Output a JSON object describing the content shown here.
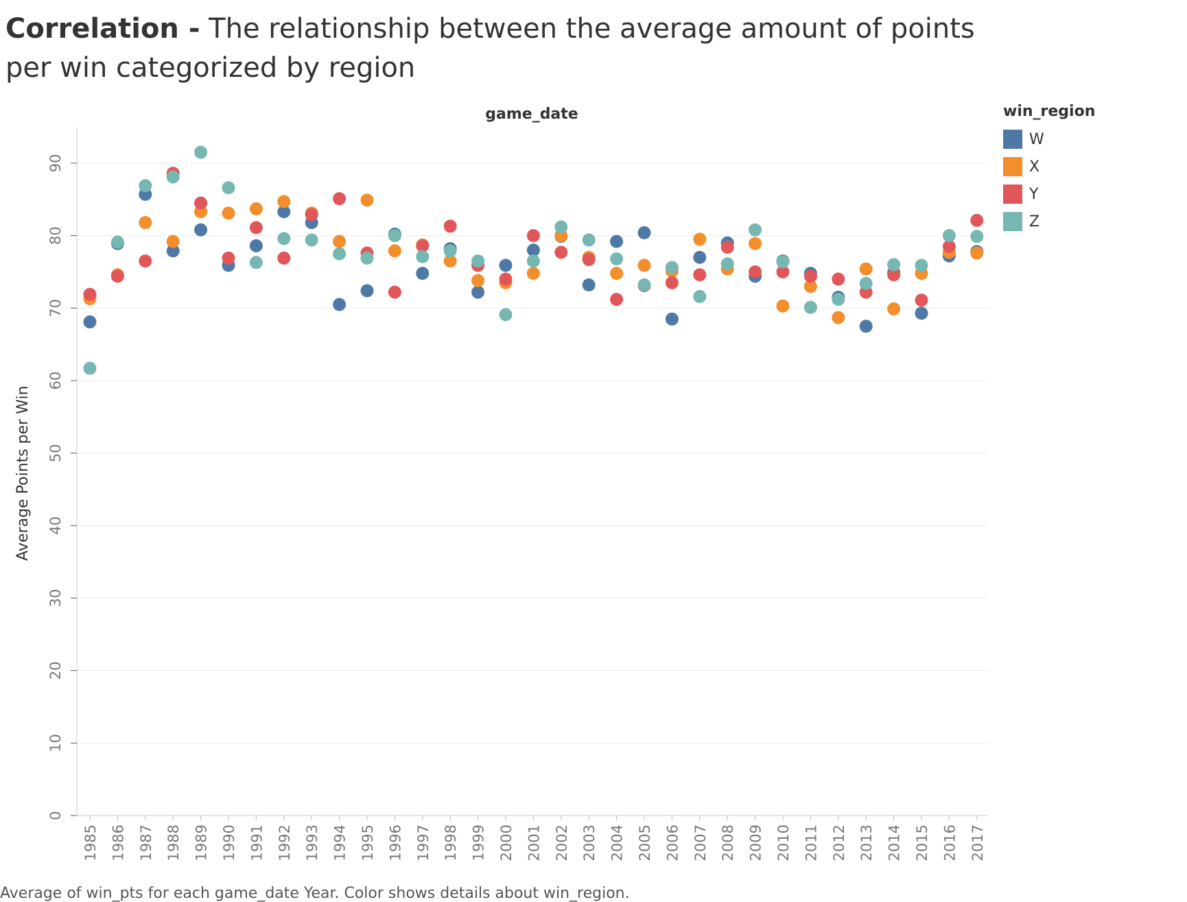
{
  "title": {
    "bold": "Correlation -",
    "rest": " The relationship between the average amount of points per win categorized by region"
  },
  "caption": "Average of win_pts for each game_date Year.  Color shows details about win_region.",
  "chart_data": {
    "type": "scatter",
    "xlabel": "game_date",
    "ylabel": "Average Points per Win",
    "ylim": [
      0,
      95
    ],
    "yticks": [
      0,
      10,
      20,
      30,
      40,
      50,
      60,
      70,
      80,
      90
    ],
    "grid": true,
    "legend_title": "win_region",
    "legend_position": "right",
    "categories": [
      "1985",
      "1986",
      "1987",
      "1988",
      "1989",
      "1990",
      "1991",
      "1992",
      "1993",
      "1994",
      "1995",
      "1996",
      "1997",
      "1998",
      "1999",
      "2000",
      "2001",
      "2002",
      "2003",
      "2004",
      "2005",
      "2006",
      "2007",
      "2008",
      "2009",
      "2010",
      "2011",
      "2012",
      "2013",
      "2014",
      "2015",
      "2016",
      "2017"
    ],
    "series": [
      {
        "name": "W",
        "color": "#4e79a7",
        "values": [
          68.1,
          78.9,
          85.7,
          77.9,
          80.8,
          75.9,
          78.6,
          83.3,
          81.8,
          70.5,
          72.4,
          80.2,
          74.8,
          78.2,
          72.2,
          75.9,
          78.0,
          79.9,
          73.2,
          79.2,
          80.4,
          68.5,
          77.0,
          79.0,
          74.4,
          76.5,
          74.8,
          71.5,
          67.5,
          74.9,
          69.3,
          77.2,
          77.8
        ]
      },
      {
        "name": "X",
        "color": "#f28e2b",
        "values": [
          71.3,
          74.6,
          81.8,
          79.2,
          83.3,
          83.1,
          83.7,
          84.7,
          83.1,
          79.2,
          84.9,
          77.9,
          78.7,
          76.5,
          73.8,
          73.5,
          74.8,
          80.0,
          77.0,
          74.8,
          75.9,
          75.1,
          79.5,
          75.4,
          78.9,
          70.3,
          73.0,
          68.7,
          75.4,
          69.9,
          74.8,
          77.7,
          77.6
        ]
      },
      {
        "name": "Y",
        "color": "#e15759",
        "values": [
          71.9,
          74.4,
          76.5,
          88.6,
          84.5,
          76.9,
          81.1,
          76.9,
          82.9,
          85.1,
          77.6,
          72.2,
          78.6,
          81.3,
          75.9,
          74.0,
          80.0,
          77.7,
          76.7,
          71.2,
          73.1,
          73.5,
          74.6,
          78.4,
          75.0,
          75.0,
          74.4,
          74.0,
          72.2,
          74.6,
          71.1,
          78.5,
          82.1
        ]
      },
      {
        "name": "Z",
        "color": "#76b7b2",
        "values": [
          61.7,
          79.1,
          86.9,
          88.1,
          91.5,
          86.6,
          76.3,
          79.6,
          79.4,
          77.5,
          76.9,
          80.0,
          77.1,
          77.9,
          76.5,
          69.1,
          76.5,
          81.2,
          79.4,
          76.8,
          73.2,
          75.6,
          71.6,
          76.1,
          80.8,
          76.4,
          70.1,
          71.2,
          73.4,
          76.0,
          75.9,
          80.0,
          79.9
        ]
      }
    ]
  }
}
